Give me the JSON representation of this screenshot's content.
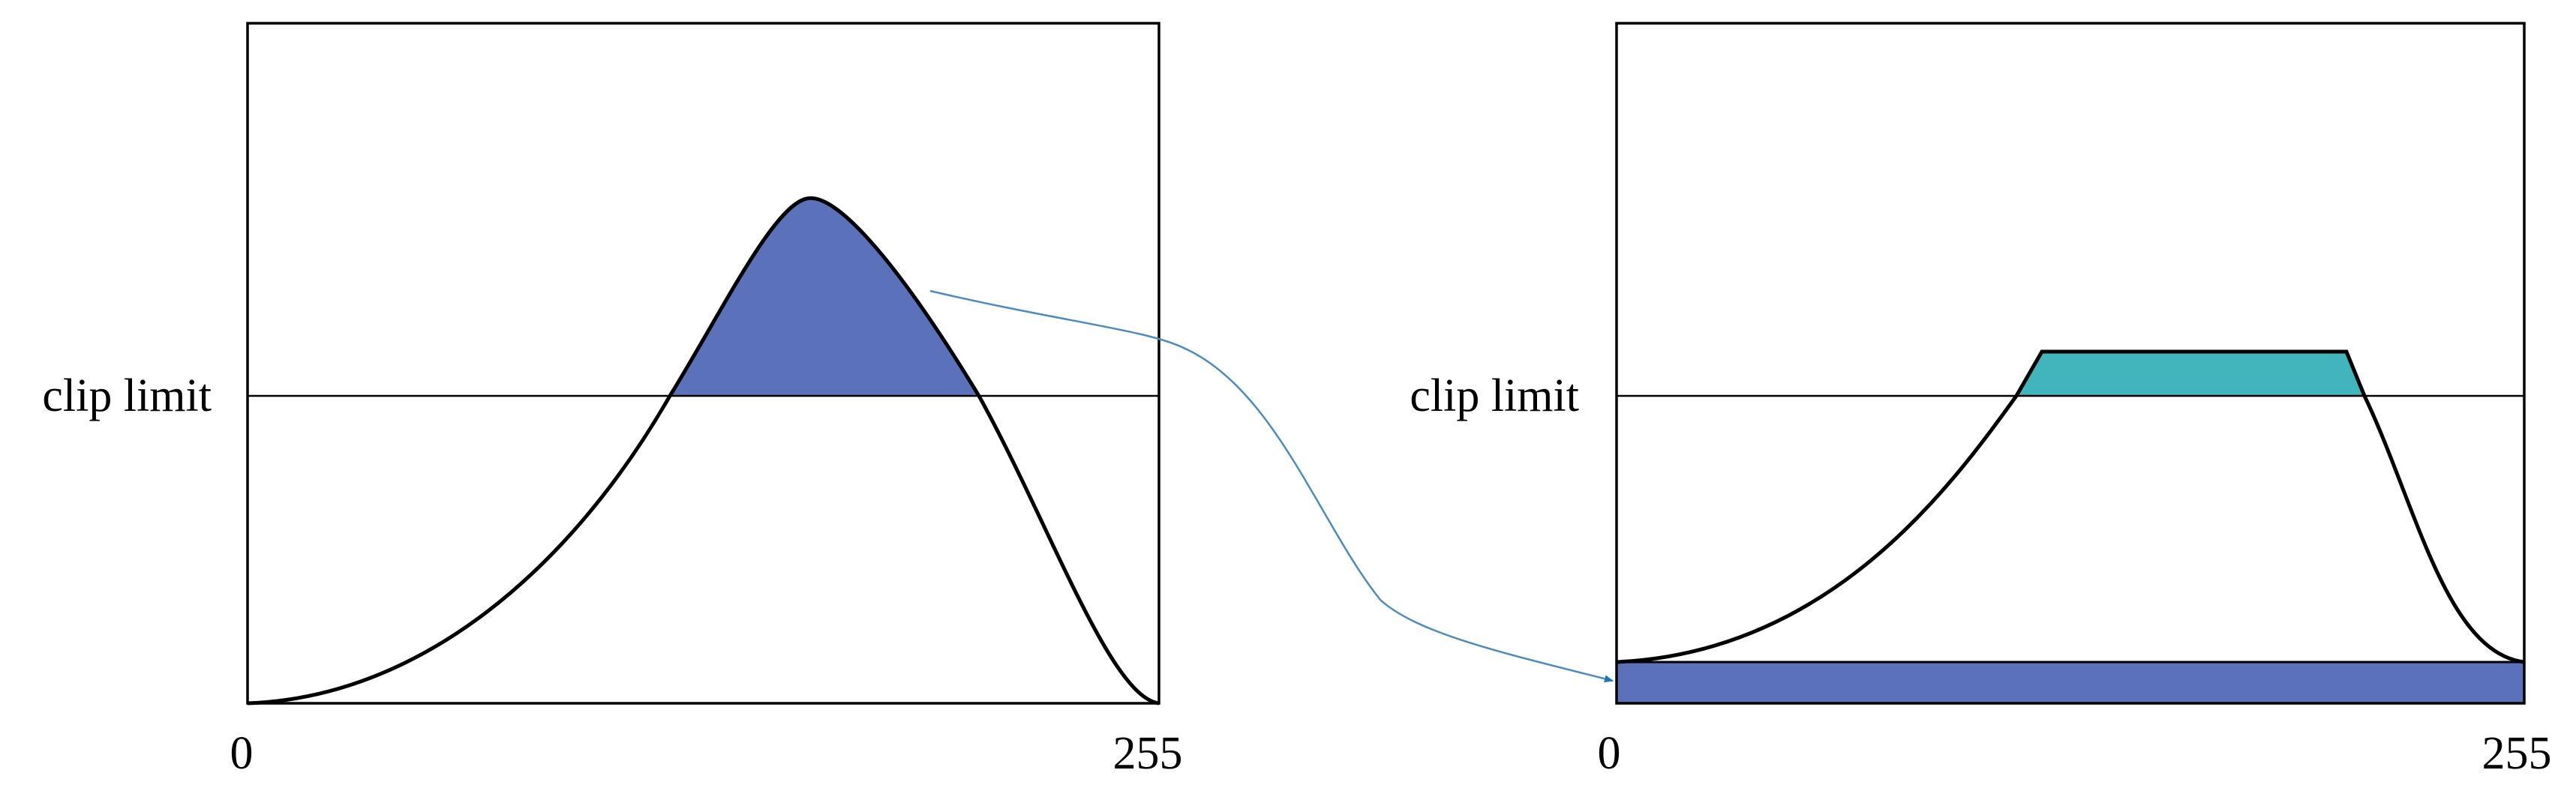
{
  "left_panel": {
    "clip_label": "clip limit",
    "x_min_label": "0",
    "x_max_label": "255"
  },
  "right_panel": {
    "clip_label": "clip limit",
    "x_min_label": "0",
    "x_max_label": "255"
  },
  "colors": {
    "clipped_excess": "#5B72BA",
    "redistributed_top": "#42B4BB",
    "arrow": "#4A8CC0",
    "outline": "#000000"
  }
}
